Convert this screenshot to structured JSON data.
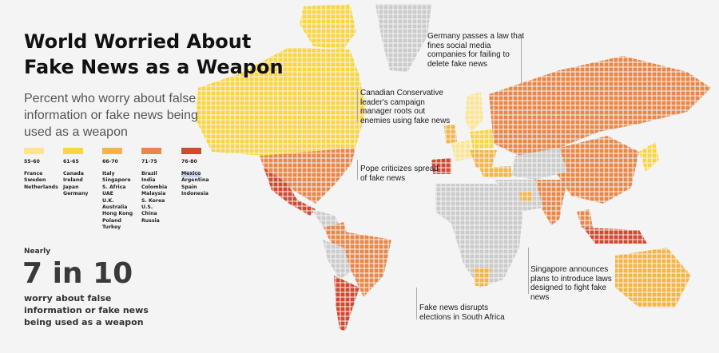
{
  "title": "World Worried About Fake News as a Weapon",
  "subtitle": "Percent who worry about false information or fake news being used as a weapon",
  "colors": {
    "land_no_data": "#cbcbcb",
    "background": "#f4f4f4"
  },
  "legend": [
    {
      "range": "55-60",
      "color": "#fde48e",
      "countries": [
        "France",
        "Sweden",
        "Netherlands"
      ]
    },
    {
      "range": "61-65",
      "color": "#f9d640",
      "countries": [
        "Canada",
        "Ireland",
        "Japan",
        "Germany"
      ]
    },
    {
      "range": "66-70",
      "color": "#f4b446",
      "countries": [
        "Italy",
        "Singapore",
        "S. Africa",
        "UAE",
        "U.K.",
        "Australia",
        "Hong Kong",
        "Poland",
        "Turkey"
      ]
    },
    {
      "range": "71-75",
      "color": "#e8874a",
      "countries": [
        "Brazil",
        "India",
        "Colombia",
        "Malaysia",
        "S. Korea",
        "U.S.",
        "China",
        "Russia"
      ]
    },
    {
      "range": "76-80",
      "color": "#d04a32",
      "countries": [
        "Mexico",
        "Argentina",
        "Spain",
        "Indonesia"
      ]
    }
  ],
  "stat": {
    "pre": "Nearly",
    "big": "7 in 10",
    "post": "worry about false information or fake news being used as a weapon"
  },
  "annotations": [
    {
      "id": "germany",
      "text": "Germany passes a law that fines social media companies for failing to delete fake news"
    },
    {
      "id": "canada",
      "text": "Canadian Conservative leader's campaign manager roots out enemies using fake news"
    },
    {
      "id": "pope",
      "text": "Pope criticizes spread of fake news"
    },
    {
      "id": "singapore",
      "text": "Singapore announces plans to introduce laws designed to fight fake news"
    },
    {
      "id": "south-africa",
      "text": "Fake news disrupts elections in South Africa"
    }
  ]
}
